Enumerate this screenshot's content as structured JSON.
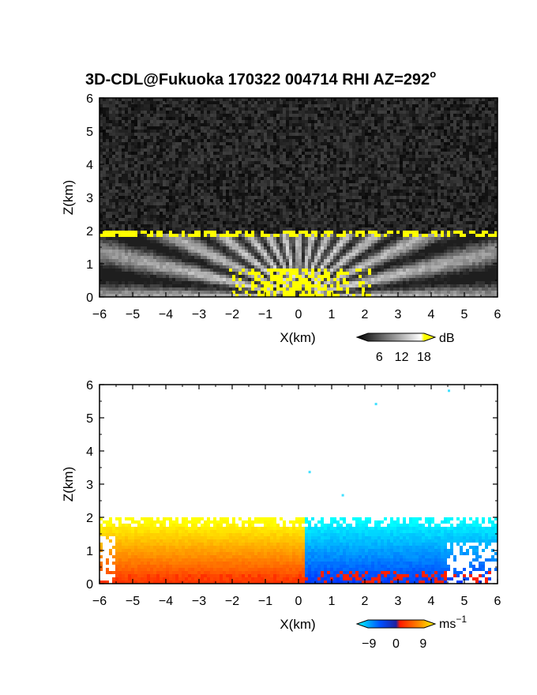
{
  "title": "3D-CDL@Fukuoka 170322 004714 RHI AZ=292",
  "title_superscript": "o",
  "chart_data": [
    {
      "type": "heatmap",
      "panel": "backscatter",
      "xlabel": "X(km)",
      "ylabel": "Z(km)",
      "xlim": [
        -6,
        6
      ],
      "ylim": [
        0,
        6
      ],
      "xticks": [
        "-6",
        "-5",
        "-4",
        "-3",
        "-2",
        "-1",
        "0",
        "1",
        "2",
        "3",
        "4",
        "5",
        "6"
      ],
      "yticks": [
        "0",
        "1",
        "2",
        "3",
        "4",
        "5",
        "6"
      ],
      "colorbar": {
        "unit": "dB",
        "ticks": [
          "6",
          "12",
          "18"
        ],
        "tick_values": [
          6,
          12,
          18
        ],
        "range": [
          0,
          21
        ],
        "colors": [
          "#000000",
          "#ffffff",
          "#ffff00"
        ]
      },
      "features": {
        "boundary_layer_top_km": 1.9,
        "saturated_value_dB": 18
      }
    },
    {
      "type": "heatmap",
      "panel": "radial_velocity",
      "xlabel": "X(km)",
      "ylabel": "Z(km)",
      "xlim": [
        -6,
        6
      ],
      "ylim": [
        0,
        6
      ],
      "xticks": [
        "-6",
        "-5",
        "-4",
        "-3",
        "-2",
        "-1",
        "0",
        "1",
        "2",
        "3",
        "4",
        "5",
        "6"
      ],
      "yticks": [
        "0",
        "1",
        "2",
        "3",
        "4",
        "5",
        "6"
      ],
      "colorbar": {
        "unit": "ms",
        "unit_superscript": "−1",
        "ticks": [
          "−9",
          "0",
          "9"
        ],
        "tick_values": [
          -9,
          0,
          9
        ],
        "range": [
          -13,
          13
        ],
        "colors": [
          "#00ffff",
          "#0050ff",
          "#ff2000",
          "#ffff00"
        ]
      },
      "features": {
        "boundary_layer_top_km": 1.9,
        "sign_change_x_km": 0.2,
        "negative_side_velocity_ms": 8,
        "positive_side_velocity_ms": -8
      }
    }
  ]
}
